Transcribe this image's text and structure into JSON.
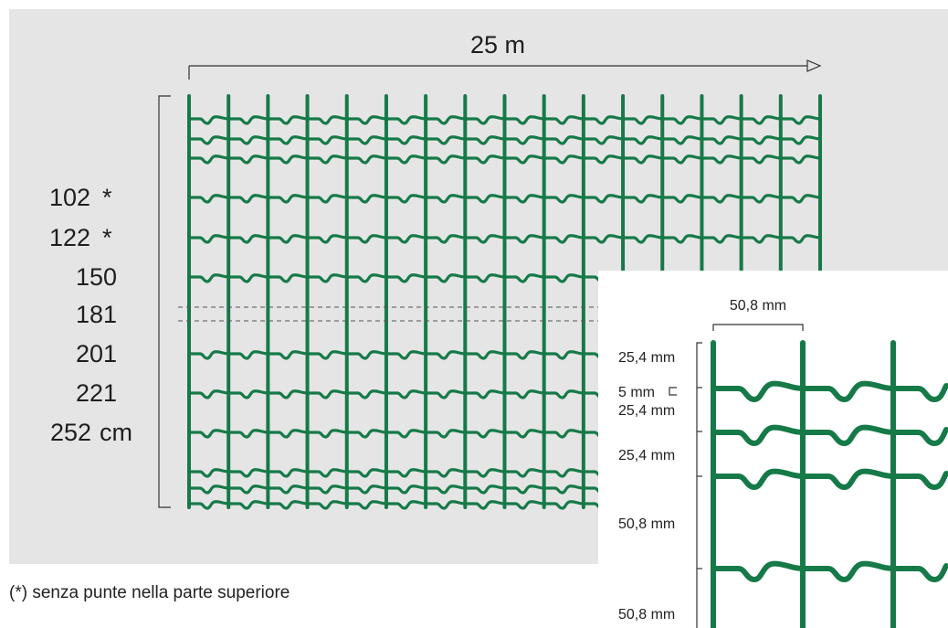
{
  "length_label": "25 m",
  "heights": [
    {
      "value": "102",
      "mark": "*"
    },
    {
      "value": "122",
      "mark": "*"
    },
    {
      "value": "150"
    },
    {
      "value": "181"
    },
    {
      "value": "201"
    },
    {
      "value": "221"
    },
    {
      "value": "252"
    }
  ],
  "height_unit": "cm",
  "detail": {
    "mesh_width": "50,8 mm",
    "spacings": [
      "25,4 mm",
      "5 mm",
      "25,4 mm",
      "25,4 mm",
      "50,8 mm",
      "50,8 mm"
    ]
  },
  "footnote": "(*) senza punte nella parte superiore",
  "colors": {
    "wire": "#167a48",
    "panel": "#e5e5e5",
    "text": "#1e1e1e"
  }
}
